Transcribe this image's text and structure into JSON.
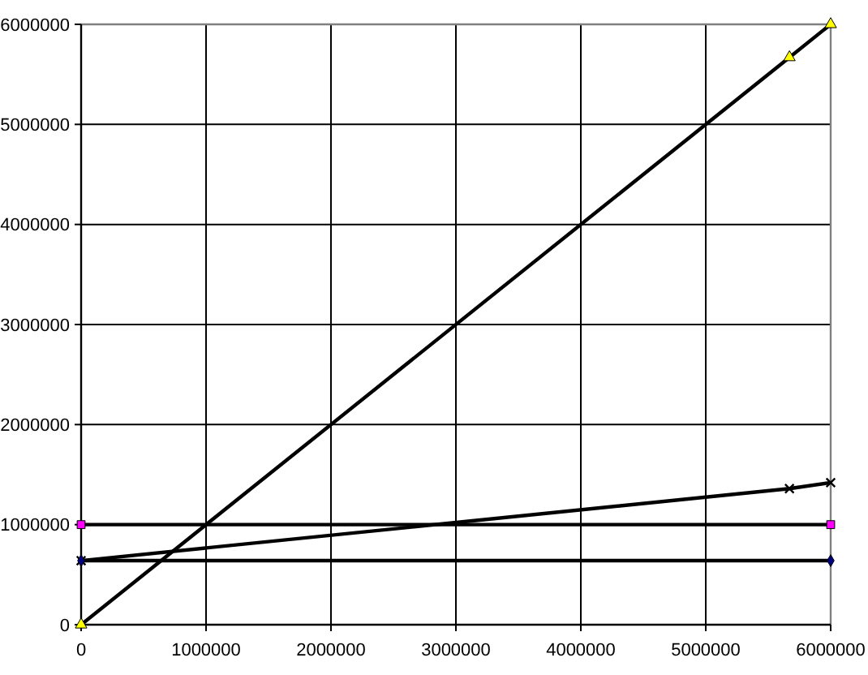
{
  "chart_data": {
    "type": "line",
    "xlim": [
      0,
      6000000
    ],
    "ylim": [
      0,
      6000000
    ],
    "xticks": [
      0,
      1000000,
      2000000,
      3000000,
      4000000,
      5000000,
      6000000
    ],
    "yticks": [
      0,
      1000000,
      2000000,
      3000000,
      4000000,
      5000000,
      6000000
    ],
    "grid": true,
    "series": [
      {
        "x": [
          0,
          5670000,
          6000000
        ],
        "values": [
          0,
          5670000,
          6000000
        ],
        "color": "#000000",
        "colors": [
          "#ffff00",
          "#ffff00",
          "#ffff00"
        ],
        "marker": "triangle"
      },
      {
        "x": [
          0,
          6000000
        ],
        "values": [
          640000,
          640000
        ],
        "color": "#000000",
        "colors": [
          "#000080",
          "#000080"
        ],
        "marker": "diamond"
      },
      {
        "x": [
          0,
          5670000,
          6000000
        ],
        "values": [
          640000,
          1360000,
          1420000
        ],
        "color": "#000000",
        "colors": [
          "#000000",
          "#000000",
          "#000000"
        ],
        "marker": "cross"
      },
      {
        "x": [
          0,
          6000000
        ],
        "values": [
          1000000,
          1000000
        ],
        "color": "#000000",
        "colors": [
          "#ff00ff",
          "#ff00ff"
        ],
        "marker": "square"
      }
    ]
  }
}
